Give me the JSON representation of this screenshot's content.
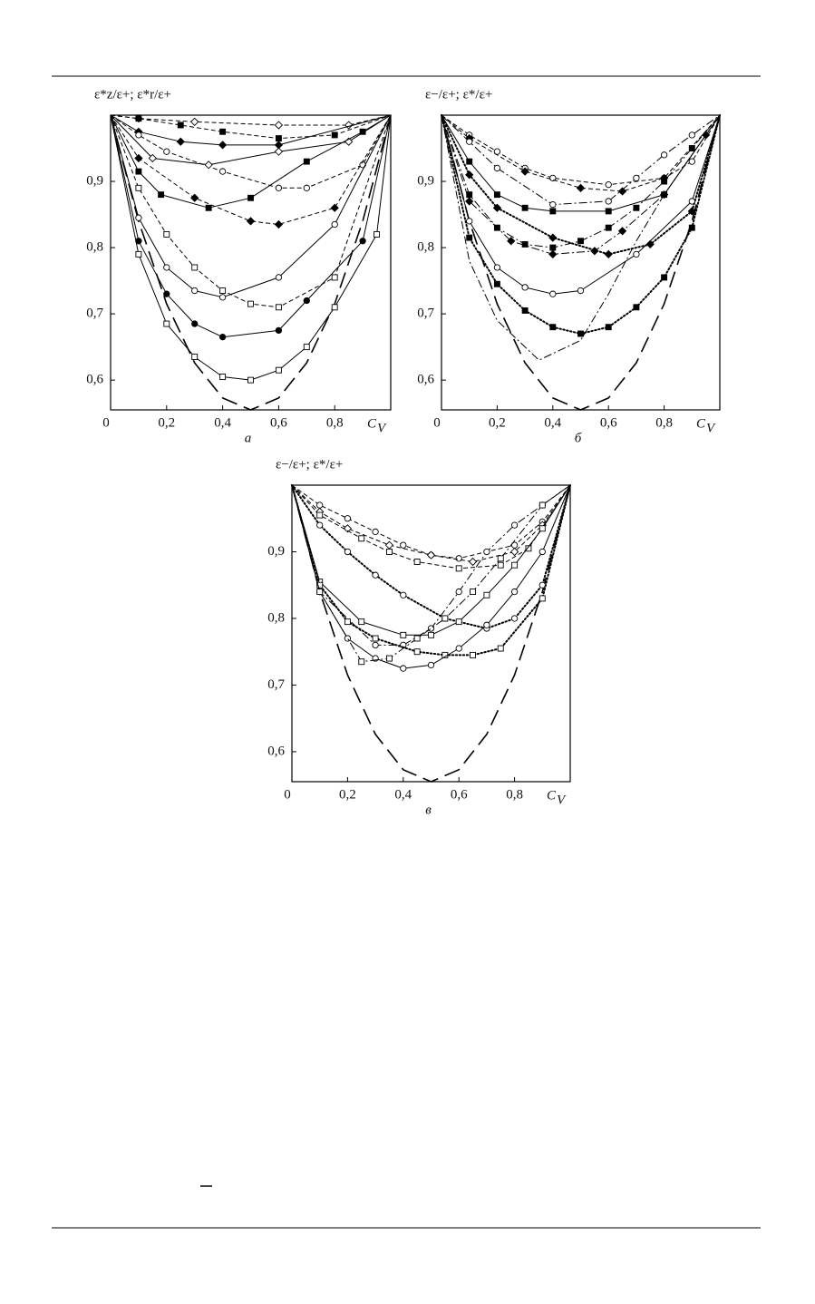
{
  "chart_data": [
    {
      "type": "line",
      "y_label": "ε*z/ε+; ε*r/ε+",
      "x_label": "C",
      "x_label_sub": "V",
      "caption": "а",
      "xlim": [
        0,
        1
      ],
      "ylim": [
        0.555,
        1
      ],
      "xticks": [
        0,
        {
          "value": 0.2,
          "label": "0,2"
        },
        {
          "value": 0.4,
          "label": "0,4"
        },
        {
          "value": 0.6,
          "label": "0,6"
        },
        {
          "value": 0.8,
          "label": "0,8"
        }
      ],
      "yticks": [
        {
          "value": 0.6,
          "label": "0,6"
        },
        {
          "value": 0.7,
          "label": "0,7"
        },
        {
          "value": 0.8,
          "label": "0,8"
        },
        {
          "value": 0.9,
          "label": "0,9"
        }
      ],
      "series": [
        {
          "color": "#000",
          "line": "longdash",
          "marker": null,
          "x": [
            0,
            0.1,
            0.2,
            0.3,
            0.4,
            0.5,
            0.6,
            0.7,
            0.8,
            0.9,
            1
          ],
          "values": [
            1,
            0.84,
            0.715,
            0.626,
            0.573,
            0.555,
            0.573,
            0.626,
            0.715,
            0.84,
            1
          ]
        },
        {
          "color": "#000",
          "line": "dashed",
          "marker": "diamond",
          "x": [
            0,
            0.1,
            0.3,
            0.6,
            0.85,
            1
          ],
          "values": [
            1,
            0.995,
            0.99,
            0.985,
            0.985,
            1
          ]
        },
        {
          "color": "#000",
          "line": "dashed",
          "marker": "square-filled",
          "x": [
            0,
            0.1,
            0.25,
            0.4,
            0.6,
            0.8,
            1
          ],
          "values": [
            1,
            0.995,
            0.985,
            0.975,
            0.965,
            0.97,
            1
          ]
        },
        {
          "color": "#000",
          "line": "solid",
          "marker": "diamond-filled",
          "x": [
            0,
            0.1,
            0.25,
            0.4,
            0.6,
            1
          ],
          "values": [
            1,
            0.975,
            0.96,
            0.955,
            0.955,
            1
          ]
        },
        {
          "color": "#000",
          "line": "dashed",
          "marker": "circle",
          "x": [
            0,
            0.1,
            0.2,
            0.4,
            0.6,
            0.7,
            0.9,
            1
          ],
          "values": [
            1,
            0.97,
            0.945,
            0.915,
            0.89,
            0.89,
            0.925,
            1
          ]
        },
        {
          "color": "#000",
          "line": "solid",
          "marker": "diamond",
          "x": [
            0,
            0.15,
            0.35,
            0.6,
            0.85,
            1
          ],
          "values": [
            1,
            0.935,
            0.925,
            0.945,
            0.96,
            1
          ]
        },
        {
          "color": "#000",
          "line": "solid",
          "marker": "square-filled",
          "x": [
            0,
            0.1,
            0.18,
            0.35,
            0.5,
            0.7,
            0.9,
            1
          ],
          "values": [
            1,
            0.915,
            0.88,
            0.86,
            0.875,
            0.93,
            0.975,
            1
          ]
        },
        {
          "color": "#000",
          "line": "dashed",
          "marker": "diamond-filled",
          "x": [
            0,
            0.1,
            0.3,
            0.5,
            0.6,
            0.8,
            1
          ],
          "values": [
            1,
            0.935,
            0.875,
            0.84,
            0.835,
            0.86,
            1
          ]
        },
        {
          "color": "#000",
          "line": "solid",
          "marker": "circle",
          "x": [
            0,
            0.1,
            0.2,
            0.3,
            0.4,
            0.6,
            0.8,
            1
          ],
          "values": [
            1,
            0.845,
            0.77,
            0.735,
            0.725,
            0.755,
            0.835,
            1
          ]
        },
        {
          "color": "#000",
          "line": "dashed",
          "marker": "square",
          "x": [
            0,
            0.1,
            0.2,
            0.3,
            0.4,
            0.5,
            0.6,
            0.8,
            1
          ],
          "values": [
            1,
            0.89,
            0.82,
            0.77,
            0.735,
            0.715,
            0.71,
            0.755,
            1
          ]
        },
        {
          "color": "#000",
          "line": "solid",
          "marker": "circle-filled",
          "x": [
            0,
            0.1,
            0.2,
            0.3,
            0.4,
            0.6,
            0.7,
            0.9,
            1
          ],
          "values": [
            1,
            0.81,
            0.73,
            0.685,
            0.665,
            0.675,
            0.72,
            0.81,
            1
          ]
        },
        {
          "color": "#000",
          "line": "solid",
          "marker": "square",
          "x": [
            0,
            0.1,
            0.2,
            0.3,
            0.4,
            0.5,
            0.6,
            0.7,
            0.8,
            0.95,
            1
          ],
          "values": [
            1,
            0.79,
            0.685,
            0.635,
            0.605,
            0.6,
            0.615,
            0.65,
            0.71,
            0.82,
            1
          ]
        }
      ]
    },
    {
      "type": "line",
      "y_label": "ε−/ε+; ε*/ε+",
      "x_label": "C",
      "x_label_sub": "V",
      "caption": "б",
      "xlim": [
        0,
        1
      ],
      "ylim": [
        0.555,
        1
      ],
      "xticks": [
        0,
        {
          "value": 0.2,
          "label": "0,2"
        },
        {
          "value": 0.4,
          "label": "0,4"
        },
        {
          "value": 0.6,
          "label": "0,6"
        },
        {
          "value": 0.8,
          "label": "0,8"
        }
      ],
      "yticks": [
        {
          "value": 0.6,
          "label": "0,6"
        },
        {
          "value": 0.7,
          "label": "0,7"
        },
        {
          "value": 0.8,
          "label": "0,8"
        },
        {
          "value": 0.9,
          "label": "0,9"
        }
      ],
      "series": [
        {
          "color": "#000",
          "line": "longdash",
          "marker": null,
          "x": [
            0,
            0.1,
            0.2,
            0.3,
            0.4,
            0.5,
            0.6,
            0.7,
            0.8,
            0.9,
            1
          ],
          "values": [
            1,
            0.84,
            0.715,
            0.626,
            0.573,
            0.555,
            0.573,
            0.626,
            0.715,
            0.84,
            1
          ]
        },
        {
          "color": "#000",
          "line": "dashed",
          "marker": "circle",
          "x": [
            0,
            0.1,
            0.2,
            0.3,
            0.4,
            0.6,
            0.8,
            0.9,
            1
          ],
          "values": [
            1,
            0.97,
            0.945,
            0.92,
            0.905,
            0.895,
            0.905,
            0.93,
            1
          ]
        },
        {
          "color": "#000",
          "line": "dashed",
          "marker": "diamond-filled",
          "x": [
            0,
            0.1,
            0.3,
            0.5,
            0.65,
            0.8,
            1
          ],
          "values": [
            1,
            0.965,
            0.915,
            0.89,
            0.885,
            0.905,
            1
          ]
        },
        {
          "color": "#000",
          "line": "dashdot",
          "marker": "circle",
          "x": [
            0,
            0.1,
            0.2,
            0.4,
            0.6,
            0.7,
            0.8,
            0.9,
            1
          ],
          "values": [
            1,
            0.96,
            0.92,
            0.865,
            0.87,
            0.905,
            0.94,
            0.97,
            1
          ]
        },
        {
          "color": "#000",
          "line": "solid",
          "marker": "square-filled",
          "x": [
            0,
            0.1,
            0.2,
            0.3,
            0.4,
            0.6,
            0.8,
            1
          ],
          "values": [
            1,
            0.93,
            0.88,
            0.86,
            0.855,
            0.855,
            0.88,
            1
          ]
        },
        {
          "color": "#000",
          "line": "dotted",
          "marker": "diamond-filled",
          "x": [
            0,
            0.1,
            0.2,
            0.4,
            0.6,
            0.75,
            0.9,
            1
          ],
          "values": [
            1,
            0.91,
            0.86,
            0.815,
            0.79,
            0.805,
            0.855,
            1
          ]
        },
        {
          "color": "#000",
          "line": "dashdot",
          "marker": "square-filled",
          "x": [
            0,
            0.1,
            0.2,
            0.3,
            0.4,
            0.5,
            0.6,
            0.7,
            0.8,
            0.9,
            1
          ],
          "values": [
            1,
            0.88,
            0.83,
            0.805,
            0.8,
            0.81,
            0.83,
            0.86,
            0.9,
            0.95,
            1
          ]
        },
        {
          "color": "#000",
          "line": "solid",
          "marker": "circle",
          "x": [
            0,
            0.1,
            0.2,
            0.3,
            0.4,
            0.5,
            0.7,
            0.9,
            1
          ],
          "values": [
            1,
            0.84,
            0.77,
            0.74,
            0.73,
            0.735,
            0.79,
            0.87,
            1
          ]
        },
        {
          "color": "#000",
          "line": "dashdot",
          "marker": "diamond-filled",
          "x": [
            0,
            0.1,
            0.25,
            0.4,
            0.55,
            0.65,
            0.8,
            0.95,
            1
          ],
          "values": [
            1,
            0.87,
            0.81,
            0.79,
            0.795,
            0.825,
            0.88,
            0.97,
            1
          ]
        },
        {
          "color": "#000",
          "line": "dotted",
          "marker": "square-filled",
          "x": [
            0,
            0.1,
            0.2,
            0.3,
            0.4,
            0.5,
            0.6,
            0.7,
            0.8,
            0.9,
            1
          ],
          "values": [
            1,
            0.815,
            0.745,
            0.705,
            0.68,
            0.67,
            0.68,
            0.71,
            0.755,
            0.83,
            1
          ]
        },
        {
          "color": "#000",
          "line": "dashdot",
          "marker": null,
          "x": [
            0,
            0.1,
            0.2,
            0.35,
            0.5,
            0.6,
            0.7,
            0.8,
            1
          ],
          "values": [
            1,
            0.78,
            0.69,
            0.63,
            0.66,
            0.73,
            0.81,
            0.88,
            1
          ]
        }
      ]
    },
    {
      "type": "line",
      "y_label": "ε−/ε+; ε*/ε+",
      "x_label": "C",
      "x_label_sub": "V",
      "caption": "в",
      "xlim": [
        0,
        1
      ],
      "ylim": [
        0.555,
        1
      ],
      "xticks": [
        0,
        {
          "value": 0.2,
          "label": "0,2"
        },
        {
          "value": 0.4,
          "label": "0,4"
        },
        {
          "value": 0.6,
          "label": "0,6"
        },
        {
          "value": 0.8,
          "label": "0,8"
        }
      ],
      "yticks": [
        {
          "value": 0.6,
          "label": "0,6"
        },
        {
          "value": 0.7,
          "label": "0,7"
        },
        {
          "value": 0.8,
          "label": "0,8"
        },
        {
          "value": 0.9,
          "label": "0,9"
        }
      ],
      "series": [
        {
          "color": "#000",
          "line": "longdash",
          "marker": null,
          "x": [
            0,
            0.1,
            0.2,
            0.3,
            0.4,
            0.5,
            0.6,
            0.7,
            0.8,
            0.9,
            1
          ],
          "values": [
            1,
            0.84,
            0.715,
            0.626,
            0.573,
            0.555,
            0.573,
            0.626,
            0.715,
            0.84,
            1
          ]
        },
        {
          "color": "#000",
          "line": "dashed",
          "marker": "circle",
          "x": [
            0,
            0.1,
            0.2,
            0.3,
            0.4,
            0.5,
            0.6,
            0.8,
            0.9,
            1
          ],
          "values": [
            1,
            0.97,
            0.95,
            0.93,
            0.91,
            0.895,
            0.89,
            0.91,
            0.945,
            1
          ]
        },
        {
          "color": "#000",
          "line": "dashed",
          "marker": "diamond",
          "x": [
            0,
            0.1,
            0.2,
            0.35,
            0.5,
            0.65,
            0.8,
            0.9,
            1
          ],
          "values": [
            1,
            0.96,
            0.935,
            0.91,
            0.895,
            0.885,
            0.9,
            0.94,
            1
          ]
        },
        {
          "color": "#000",
          "line": "dashed",
          "marker": "square",
          "x": [
            0,
            0.1,
            0.25,
            0.35,
            0.45,
            0.6,
            0.75,
            0.85,
            1
          ],
          "values": [
            1,
            0.955,
            0.92,
            0.9,
            0.885,
            0.875,
            0.88,
            0.905,
            1
          ]
        },
        {
          "color": "#000",
          "line": "dotted",
          "marker": "circle",
          "x": [
            0,
            0.1,
            0.2,
            0.3,
            0.4,
            0.55,
            0.7,
            0.8,
            0.9,
            1
          ],
          "values": [
            1,
            0.94,
            0.9,
            0.865,
            0.835,
            0.8,
            0.785,
            0.8,
            0.85,
            1
          ]
        },
        {
          "color": "#000",
          "line": "dashdot",
          "marker": "circle",
          "x": [
            0,
            0.1,
            0.3,
            0.4,
            0.5,
            0.6,
            0.7,
            0.8,
            0.9,
            1
          ],
          "values": [
            1,
            0.84,
            0.76,
            0.76,
            0.785,
            0.84,
            0.9,
            0.94,
            0.97,
            1
          ]
        },
        {
          "color": "#000",
          "line": "solid",
          "marker": "square",
          "x": [
            0,
            0.1,
            0.25,
            0.4,
            0.5,
            0.6,
            0.7,
            0.8,
            0.9,
            1
          ],
          "values": [
            1,
            0.855,
            0.795,
            0.775,
            0.775,
            0.795,
            0.835,
            0.88,
            0.935,
            1
          ]
        },
        {
          "color": "#000",
          "line": "dotted",
          "marker": "square",
          "x": [
            0,
            0.1,
            0.2,
            0.3,
            0.45,
            0.55,
            0.65,
            0.75,
            0.9,
            1
          ],
          "values": [
            1,
            0.85,
            0.795,
            0.77,
            0.75,
            0.745,
            0.745,
            0.755,
            0.83,
            1
          ]
        },
        {
          "color": "#000",
          "line": "solid",
          "marker": "circle",
          "x": [
            0,
            0.1,
            0.2,
            0.3,
            0.4,
            0.5,
            0.6,
            0.7,
            0.8,
            0.9,
            1
          ],
          "values": [
            1,
            0.84,
            0.77,
            0.74,
            0.725,
            0.73,
            0.755,
            0.79,
            0.84,
            0.9,
            1
          ]
        },
        {
          "color": "#000",
          "line": "dashdot",
          "marker": "square",
          "x": [
            0,
            0.1,
            0.25,
            0.35,
            0.45,
            0.55,
            0.65,
            0.75,
            0.9,
            1
          ],
          "values": [
            1,
            0.84,
            0.735,
            0.74,
            0.77,
            0.8,
            0.84,
            0.89,
            0.97,
            1
          ]
        }
      ]
    }
  ]
}
